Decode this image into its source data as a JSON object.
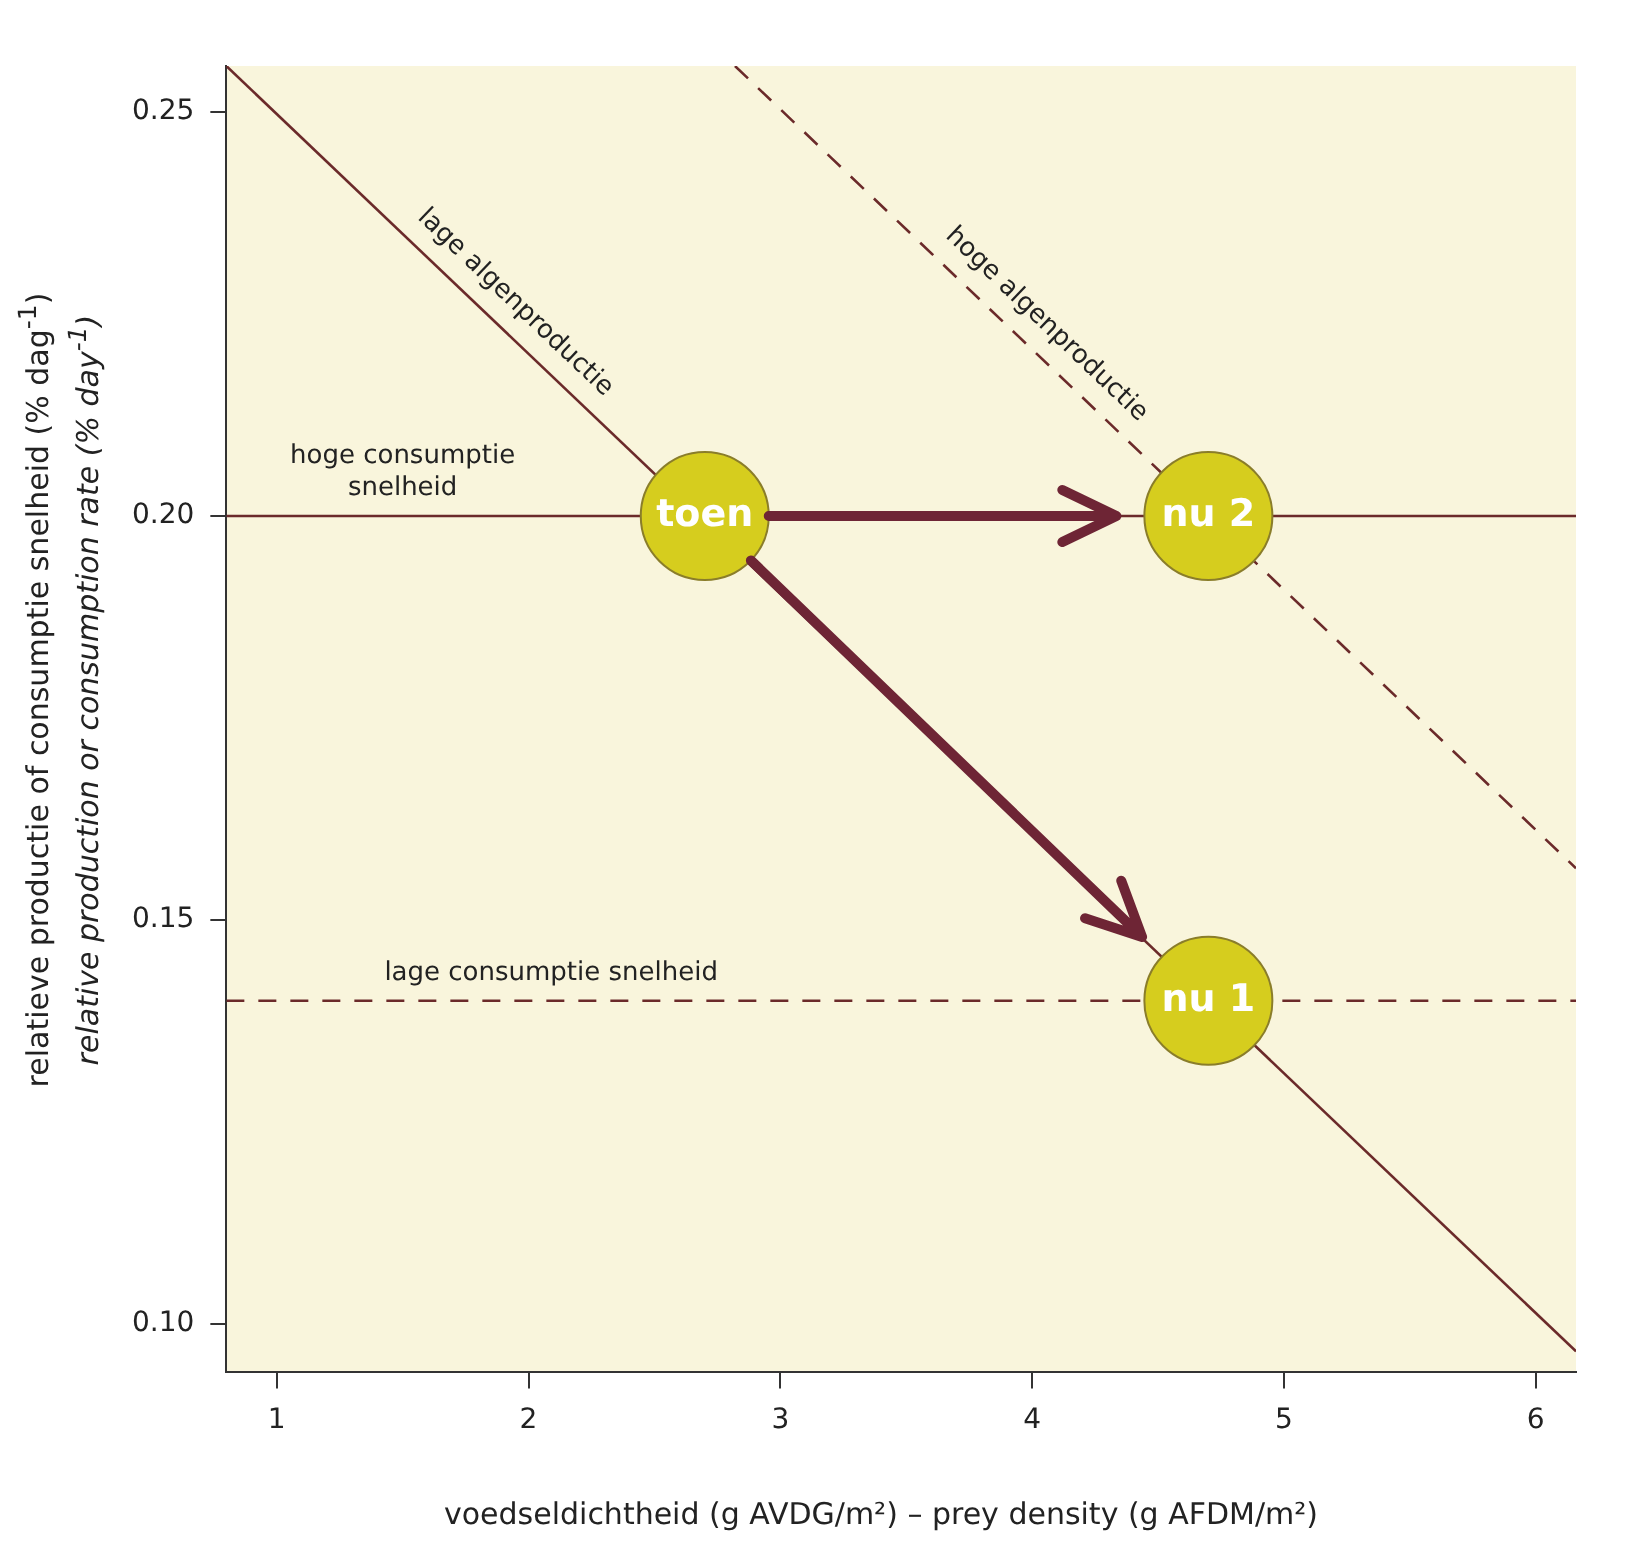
{
  "chart_data": {
    "type": "line",
    "xlabel": "voedseldichtheid (g AVDG/m²)  – prey density (g AFDM/m²)",
    "ylabel": "relatieve productie of consumptie snelheid (% dag$^{-1}$)\nrelative production or consumption rate (% day$^{-1}$)",
    "xlim": [
      0.8,
      6.16
    ],
    "ylim": [
      0.094,
      0.2557
    ],
    "xticks": [
      1,
      2,
      3,
      4,
      5,
      6
    ],
    "yticks": [
      {
        "value": 0.1,
        "label": "0.10"
      },
      {
        "value": 0.15,
        "label": "0.15"
      },
      {
        "value": 0.2,
        "label": "0.20"
      },
      {
        "value": 0.25,
        "label": "0.25"
      }
    ],
    "grid": false,
    "legend": false,
    "series": [
      {
        "type": "line",
        "color": "#6b2a2a",
        "line_style": "solid",
        "x": [
          0.8,
          6.16
        ],
        "values": [
          0.2557,
          0.0966
        ]
      },
      {
        "type": "line",
        "color": "#6b2a2a",
        "line_style": "dashed",
        "x": [
          2.82,
          6.16
        ],
        "values": [
          0.2557,
          0.1564
        ]
      },
      {
        "type": "line",
        "color": "#6b2a2a",
        "line_style": "solid",
        "x": [
          0.8,
          6.16
        ],
        "values": [
          0.2,
          0.2
        ]
      },
      {
        "type": "line",
        "color": "#6b2a2a",
        "line_style": "dashed",
        "x": [
          0.8,
          6.16
        ],
        "values": [
          0.14,
          0.14
        ]
      },
      {
        "type": "scatter",
        "color": "#d6cd1e",
        "marker": "circle",
        "x": [
          2.7,
          4.7,
          4.7
        ],
        "values": [
          0.2,
          0.2,
          0.14
        ]
      }
    ],
    "annotations": [
      {
        "text": "lage algenproductie",
        "x": 1.87,
        "y": 0.2239
      },
      {
        "text": "hoge algenproductie",
        "x": 3.98,
        "y": 0.2212
      },
      {
        "text": "hoge consumptie\nsnelheid",
        "x": 1.5,
        "y": 0.2
      },
      {
        "text": "lage consumptie snelheid",
        "x": 2.09,
        "y": 0.14
      },
      {
        "text": "toen",
        "x": 2.7,
        "y": 0.2
      },
      {
        "text": "nu 2",
        "x": 4.7,
        "y": 0.2
      },
      {
        "text": "nu 1",
        "x": 4.7,
        "y": 0.14
      }
    ]
  }
}
